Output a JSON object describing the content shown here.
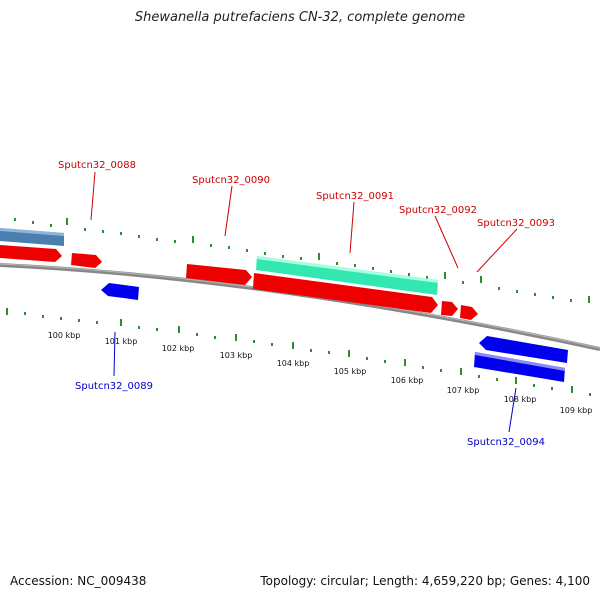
{
  "title": "Shewanella putrefaciens CN-32, complete genome",
  "footer": {
    "accession": "Accession: NC_009438",
    "info": "Topology: circular; Length: 4,659,220 bp; Genes: 4,100"
  },
  "colors": {
    "forward_cds": "#ff0000",
    "reverse_cds": "#0000ee",
    "rna_gene": "#4682b4",
    "highlight_gene": "#33e8b0",
    "backbone": "#888888",
    "tick": "#2e8b2e",
    "forward_label": "#cc0000",
    "reverse_label": "#0000cc"
  },
  "scale": {
    "unit": "kbp",
    "labels": [
      {
        "kbp": 100,
        "text": "100 kbp"
      },
      {
        "kbp": 101,
        "text": "101 kbp"
      },
      {
        "kbp": 102,
        "text": "102 kbp"
      },
      {
        "kbp": 103,
        "text": "103 kbp"
      },
      {
        "kbp": 104,
        "text": "104 kbp"
      },
      {
        "kbp": 105,
        "text": "105 kbp"
      },
      {
        "kbp": 106,
        "text": "106 kbp"
      },
      {
        "kbp": 107,
        "text": "107 kbp"
      },
      {
        "kbp": 108,
        "text": "108 kbp"
      },
      {
        "kbp": 109,
        "text": "109 kbp"
      }
    ]
  },
  "genes": {
    "labeled": [
      {
        "name": "Sputcn32_0088",
        "strand": "forward"
      },
      {
        "name": "Sputcn32_0089",
        "strand": "reverse"
      },
      {
        "name": "Sputcn32_0090",
        "strand": "forward"
      },
      {
        "name": "Sputcn32_0091",
        "strand": "forward"
      },
      {
        "name": "Sputcn32_0092",
        "strand": "forward"
      },
      {
        "name": "Sputcn32_0093",
        "strand": "forward"
      },
      {
        "name": "Sputcn32_0094",
        "strand": "reverse"
      }
    ]
  }
}
